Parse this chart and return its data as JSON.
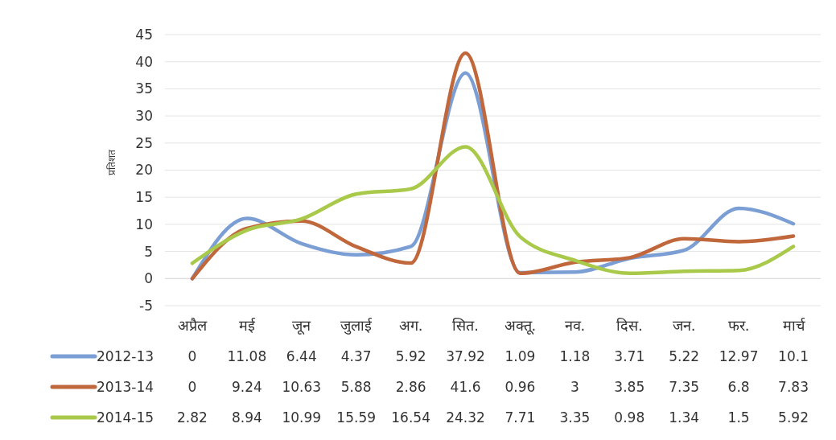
{
  "chart_data": {
    "type": "line",
    "ylabel": "प्रतिशत",
    "categories": [
      "अप्रैल",
      "मई",
      "जून",
      "जुलाई",
      "अग.",
      "सित.",
      "अक्तू.",
      "नव.",
      "दिस.",
      "जन.",
      "फर.",
      "मार्च"
    ],
    "series": [
      {
        "name": "2012-13",
        "color": "#7b9fd4",
        "values": [
          0,
          11.08,
          6.44,
          4.37,
          5.92,
          37.92,
          1.09,
          1.18,
          3.71,
          5.22,
          12.97,
          10.1
        ]
      },
      {
        "name": "2013-14",
        "color": "#c0673b",
        "values": [
          0,
          9.24,
          10.63,
          5.88,
          2.86,
          41.6,
          0.96,
          3,
          3.85,
          7.35,
          6.8,
          7.83
        ]
      },
      {
        "name": "2014-15",
        "color": "#a9c94b",
        "values": [
          2.82,
          8.94,
          10.99,
          15.59,
          16.54,
          24.32,
          7.71,
          3.35,
          0.98,
          1.34,
          1.5,
          5.92
        ]
      }
    ],
    "ylim": [
      -5,
      45
    ],
    "yticks": [
      -5,
      0,
      5,
      10,
      15,
      20,
      25,
      30,
      35,
      40,
      45
    ],
    "grid": "y",
    "data_labels": true,
    "legend": "bottom",
    "line_style": "solid"
  }
}
